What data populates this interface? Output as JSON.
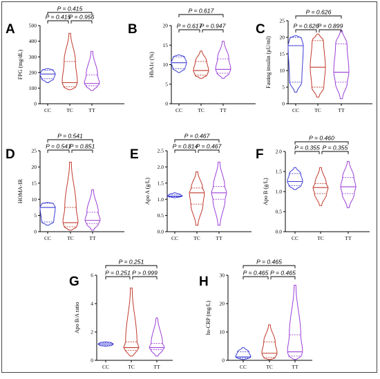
{
  "figure": {
    "groups": [
      "CC",
      "TC",
      "TT"
    ],
    "colors": {
      "CC": "#3b3bd6",
      "TC": "#c0392b",
      "TT": "#9b3fd8"
    }
  },
  "chart_data": [
    {
      "type": "violin",
      "letter": "A",
      "ylabel": "FPG (mg/dL)",
      "ylim": [
        0,
        500
      ],
      "yticks": [
        0,
        100,
        200,
        300,
        400,
        500
      ],
      "categories": [
        "CC",
        "TC",
        "TT"
      ],
      "comparisons": [
        {
          "from": "CC",
          "to": "TC",
          "label": "P = 0.415"
        },
        {
          "from": "TC",
          "to": "TT",
          "label": "P = 0.956"
        },
        {
          "from": "CC",
          "to": "TT",
          "label": "P = 0.415"
        }
      ],
      "series": [
        {
          "group": "CC",
          "min": 135,
          "max": 225,
          "median": 190,
          "q1": 160,
          "q3": 215
        },
        {
          "group": "TC",
          "min": 90,
          "max": 450,
          "median": 135,
          "q1": 108,
          "q3": 270
        },
        {
          "group": "TT",
          "min": 85,
          "max": 335,
          "median": 130,
          "q1": 115,
          "q3": 185
        }
      ]
    },
    {
      "type": "violin",
      "letter": "B",
      "ylabel": "HbA1c (%)",
      "ylim": [
        0,
        20
      ],
      "yticks": [
        0,
        5,
        10,
        15,
        20
      ],
      "categories": [
        "CC",
        "TC",
        "TT"
      ],
      "comparisons": [
        {
          "from": "CC",
          "to": "TC",
          "label": "P = 0.617"
        },
        {
          "from": "TC",
          "to": "TT",
          "label": "P = 0.947"
        },
        {
          "from": "CC",
          "to": "TT",
          "label": "P = 0.617"
        }
      ],
      "series": [
        {
          "group": "CC",
          "min": 8,
          "max": 12.5,
          "median": 10.5,
          "q1": 9,
          "q3": 12
        },
        {
          "group": "TC",
          "min": 6.5,
          "max": 13.5,
          "median": 8.5,
          "q1": 7.3,
          "q3": 10.8
        },
        {
          "group": "TT",
          "min": 6.5,
          "max": 16,
          "median": 8.8,
          "q1": 7.8,
          "q3": 11.5
        }
      ]
    },
    {
      "type": "violin",
      "letter": "C",
      "ylabel": "Fasting insulin (µU/ml)",
      "ylim": [
        0,
        25
      ],
      "yticks": [
        0,
        5,
        10,
        15,
        20,
        25
      ],
      "categories": [
        "CC",
        "TC",
        "TT"
      ],
      "comparisons": [
        {
          "from": "CC",
          "to": "TC",
          "label": "P = 0.626"
        },
        {
          "from": "TC",
          "to": "TT",
          "label": "P = 0.899"
        },
        {
          "from": "CC",
          "to": "TT",
          "label": "P = 0.626"
        }
      ],
      "series": [
        {
          "group": "CC",
          "min": 3.5,
          "max": 20.5,
          "median": 17.5,
          "q1": 6.5,
          "q3": 20
        },
        {
          "group": "TC",
          "min": 2,
          "max": 21,
          "median": 11,
          "q1": 5,
          "q3": 19
        },
        {
          "group": "TT",
          "min": 1.5,
          "max": 22,
          "median": 9.5,
          "q1": 6.5,
          "q3": 18
        }
      ]
    },
    {
      "type": "violin",
      "letter": "D",
      "ylabel": "HOMA-IR",
      "ylim": [
        0,
        25
      ],
      "yticks": [
        0,
        5,
        10,
        15,
        20,
        25
      ],
      "categories": [
        "CC",
        "TC",
        "TT"
      ],
      "comparisons": [
        {
          "from": "CC",
          "to": "TC",
          "label": "P = 0.541"
        },
        {
          "from": "TC",
          "to": "TT",
          "label": "P = 0.851"
        },
        {
          "from": "CC",
          "to": "TT",
          "label": "P = 0.541"
        }
      ],
      "series": [
        {
          "group": "CC",
          "min": 2,
          "max": 9,
          "median": 7.5,
          "q1": 3,
          "q3": 8.8
        },
        {
          "group": "TC",
          "min": 0.5,
          "max": 21.5,
          "median": 2.8,
          "q1": 1.5,
          "q3": 7.5
        },
        {
          "group": "TT",
          "min": 0.5,
          "max": 13,
          "median": 3.5,
          "q1": 2.5,
          "q3": 6
        }
      ]
    },
    {
      "type": "violin",
      "letter": "E",
      "ylabel": "Apo A (g/L)",
      "ylim": [
        0,
        2.5
      ],
      "yticks": [
        0.0,
        0.5,
        1.0,
        1.5,
        2.0,
        2.5
      ],
      "categories": [
        "CC",
        "TC",
        "TT"
      ],
      "comparisons": [
        {
          "from": "CC",
          "to": "TC",
          "label": "P = 0.814"
        },
        {
          "from": "TC",
          "to": "TT",
          "label": "P = 0.467"
        },
        {
          "from": "CC",
          "to": "TT",
          "label": "P = 0.467"
        }
      ],
      "series": [
        {
          "group": "CC",
          "min": 1.05,
          "max": 1.2,
          "median": 1.1,
          "q1": 1.08,
          "q3": 1.15
        },
        {
          "group": "TC",
          "min": 0.2,
          "max": 1.85,
          "median": 1.2,
          "q1": 0.85,
          "q3": 1.35
        },
        {
          "group": "TT",
          "min": 0.2,
          "max": 2.15,
          "median": 1.2,
          "q1": 1.0,
          "q3": 1.4
        }
      ]
    },
    {
      "type": "violin",
      "letter": "F",
      "ylabel": "Apo B (g/L)",
      "ylim": [
        0,
        2.0
      ],
      "yticks": [
        0.0,
        0.5,
        1.0,
        1.5,
        2.0
      ],
      "categories": [
        "CC",
        "TC",
        "TT"
      ],
      "comparisons": [
        {
          "from": "CC",
          "to": "TC",
          "label": "P = 0.355"
        },
        {
          "from": "TC",
          "to": "TT",
          "label": "P = 0.355"
        },
        {
          "from": "CC",
          "to": "TT",
          "label": "P = 0.460"
        }
      ],
      "series": [
        {
          "group": "CC",
          "min": 1.05,
          "max": 1.6,
          "median": 1.25,
          "q1": 1.15,
          "q3": 1.45
        },
        {
          "group": "TC",
          "min": 0.65,
          "max": 1.6,
          "median": 1.1,
          "q1": 0.95,
          "q3": 1.2
        },
        {
          "group": "TT",
          "min": 0.6,
          "max": 1.75,
          "median": 1.12,
          "q1": 0.95,
          "q3": 1.35
        }
      ]
    },
    {
      "type": "violin",
      "letter": "G",
      "ylabel": "Apo B/A ratio",
      "ylim": [
        0,
        6
      ],
      "yticks": [
        0,
        2,
        4,
        6
      ],
      "categories": [
        "CC",
        "TC",
        "TT"
      ],
      "comparisons": [
        {
          "from": "CC",
          "to": "TC",
          "label": "P = 0.251"
        },
        {
          "from": "TC",
          "to": "TT",
          "label": "P > 0.999"
        },
        {
          "from": "CC",
          "to": "TT",
          "label": "P = 0.251"
        }
      ],
      "series": [
        {
          "group": "CC",
          "min": 1.0,
          "max": 1.3,
          "median": 1.15,
          "q1": 1.05,
          "q3": 1.25
        },
        {
          "group": "TC",
          "min": 0.3,
          "max": 5.1,
          "median": 0.9,
          "q1": 0.7,
          "q3": 1.3
        },
        {
          "group": "TT",
          "min": 0.3,
          "max": 3.0,
          "median": 0.9,
          "q1": 0.75,
          "q3": 1.2
        }
      ]
    },
    {
      "type": "violin",
      "letter": "H",
      "ylabel": "hs-CRP (mg/L)",
      "ylim": [
        0,
        30
      ],
      "yticks": [
        0,
        10,
        20,
        30
      ],
      "categories": [
        "CC",
        "TC",
        "TT"
      ],
      "comparisons": [
        {
          "from": "CC",
          "to": "TC",
          "label": "P = 0.465"
        },
        {
          "from": "TC",
          "to": "TT",
          "label": "P = 0.465"
        },
        {
          "from": "CC",
          "to": "TT",
          "label": "P = 0.465"
        }
      ],
      "series": [
        {
          "group": "CC",
          "min": 0.3,
          "max": 4.5,
          "median": 1.2,
          "q1": 0.8,
          "q3": 3.0
        },
        {
          "group": "TC",
          "min": 0.3,
          "max": 12.5,
          "median": 2.5,
          "q1": 1.0,
          "q3": 6.5
        },
        {
          "group": "TT",
          "min": 0.3,
          "max": 26.5,
          "median": 3.0,
          "q1": 1.5,
          "q3": 9.0
        }
      ]
    }
  ]
}
